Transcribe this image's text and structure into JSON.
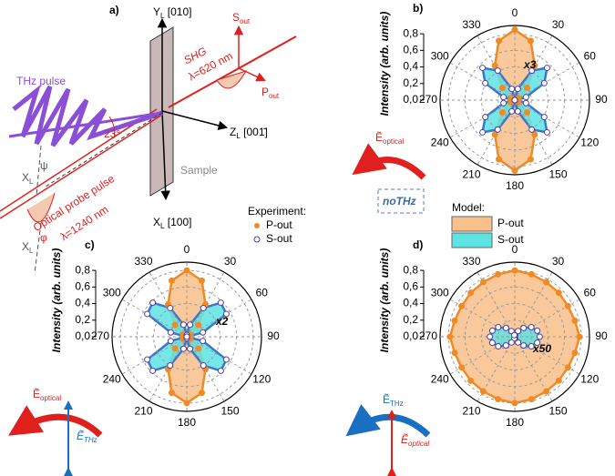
{
  "panel_a": {
    "label": "a)",
    "y_axis": {
      "main": "Y",
      "sub": "L",
      "suffix": " [010]"
    },
    "s_out": {
      "main": "S",
      "sub": "out"
    },
    "shg": "SHG",
    "shg_wavelength": "λ=620 nm",
    "p_out": {
      "main": "P",
      "sub": "out"
    },
    "thz": "THz pulse",
    "angle": "23°",
    "z_axis": {
      "main": "Z",
      "sub": "L",
      "suffix": " [001̄]"
    },
    "psi": "ψ",
    "x_psi": {
      "main": "X",
      "sub": "L"
    },
    "probe": "Optical probe pulse",
    "probe_wavelength": "λ=1240 nm",
    "sample": "Sample",
    "x_axis": {
      "main": "X",
      "sub": "L",
      "suffix": " [100]"
    },
    "phi": "φ",
    "x_phi": {
      "main": "X",
      "sub": "L"
    }
  },
  "legend": {
    "experiment_title": "Experiment:",
    "experiment": [
      "P-out",
      "S-out"
    ],
    "model_title": "Model:"
  },
  "insets": {
    "b": {
      "field": {
        "main": "Ẽ",
        "sub": "optical"
      },
      "label": "noTHz"
    },
    "c": {
      "field": {
        "main": "Ẽ",
        "sub": "optical"
      },
      "thz": {
        "main": "Ẽ",
        "sub": "THz"
      }
    },
    "d": {
      "thz": {
        "main": "Ẽ",
        "sub": "THz"
      },
      "field": {
        "main": "Ẽ",
        "sub": "optical"
      }
    }
  },
  "chart_data": [
    {
      "type": "polar",
      "label": "b)",
      "annotation": "x3",
      "ylabel": "Intensity (arb. units)",
      "rlim": [
        0,
        0.9
      ],
      "rticks": [
        {
          "value": 0,
          "label": "0,0"
        },
        {
          "value": 0.2,
          "label": "0,2"
        },
        {
          "value": 0.4,
          "label": "0,4"
        },
        {
          "value": 0.6,
          "label": "0,6"
        },
        {
          "value": 0.8,
          "label": "0,8"
        }
      ],
      "aticks": [
        0,
        30,
        60,
        90,
        120,
        150,
        180,
        210,
        240,
        270,
        300,
        330
      ],
      "theta": [
        0,
        15,
        30,
        45,
        60,
        75,
        90,
        105,
        120,
        135,
        150,
        165,
        180,
        195,
        210,
        225,
        240,
        255,
        270,
        285,
        300,
        315,
        330,
        345
      ],
      "series": [
        {
          "name": "P-out",
          "color": "#f08a24",
          "values": [
            0.85,
            0.74,
            0.48,
            0.21,
            0.05,
            0,
            0,
            0,
            0.05,
            0.21,
            0.48,
            0.74,
            0.85,
            0.74,
            0.48,
            0.21,
            0.05,
            0,
            0,
            0,
            0.05,
            0.21,
            0.48,
            0.74
          ]
        },
        {
          "name": "S-out",
          "color": "#3a78d0",
          "values": [
            0,
            0.14,
            0.41,
            0.55,
            0.41,
            0.14,
            0,
            0.14,
            0.41,
            0.55,
            0.41,
            0.14,
            0,
            0.14,
            0.41,
            0.55,
            0.41,
            0.14,
            0,
            0.14,
            0.41,
            0.55,
            0.41,
            0.14
          ]
        }
      ]
    },
    {
      "type": "polar",
      "label": "c)",
      "annotation": "x2",
      "ylabel": "Intensity (arb. units)",
      "rlim": [
        0,
        0.9
      ],
      "rticks": [
        {
          "value": 0,
          "label": "0,0"
        },
        {
          "value": 0.2,
          "label": "0,2"
        },
        {
          "value": 0.4,
          "label": "0,4"
        },
        {
          "value": 0.6,
          "label": "0,6"
        },
        {
          "value": 0.8,
          "label": "0,8"
        }
      ],
      "aticks": [
        0,
        30,
        60,
        90,
        120,
        150,
        180,
        210,
        240,
        270,
        300,
        330
      ],
      "theta": [
        0,
        15,
        30,
        45,
        60,
        75,
        90,
        105,
        120,
        135,
        150,
        165,
        180,
        195,
        210,
        225,
        240,
        255,
        270,
        285,
        300,
        315,
        330,
        345
      ],
      "series": [
        {
          "name": "P-out",
          "color": "#f08a24",
          "values": [
            0.8,
            0.7,
            0.45,
            0.2,
            0.05,
            0,
            0,
            0,
            0.05,
            0.2,
            0.45,
            0.7,
            0.8,
            0.7,
            0.45,
            0.2,
            0.05,
            0,
            0,
            0,
            0.05,
            0.2,
            0.45,
            0.7
          ]
        },
        {
          "name": "S-out",
          "color": "#3a78d0",
          "values": [
            0.02,
            0.15,
            0.4,
            0.58,
            0.55,
            0.2,
            0,
            0.2,
            0.55,
            0.58,
            0.4,
            0.15,
            0.02,
            0.15,
            0.4,
            0.58,
            0.55,
            0.2,
            0,
            0.2,
            0.55,
            0.58,
            0.4,
            0.15
          ]
        }
      ]
    },
    {
      "type": "polar",
      "label": "d)",
      "annotation": "x50",
      "ylabel": "Intensity (arb. units)",
      "rlim": [
        0,
        0.9
      ],
      "rticks": [
        {
          "value": 0,
          "label": "0,0"
        },
        {
          "value": 0.2,
          "label": "0,2"
        },
        {
          "value": 0.4,
          "label": "0,4"
        },
        {
          "value": 0.6,
          "label": "0,6"
        },
        {
          "value": 0.8,
          "label": "0,8"
        }
      ],
      "aticks": [
        0,
        30,
        60,
        90,
        120,
        150,
        180,
        210,
        240,
        270,
        300,
        330
      ],
      "theta": [
        0,
        15,
        30,
        45,
        60,
        75,
        90,
        105,
        120,
        135,
        150,
        165,
        180,
        195,
        210,
        225,
        240,
        255,
        270,
        285,
        300,
        315,
        330,
        345
      ],
      "series": [
        {
          "name": "P-out",
          "color": "#f08a24",
          "values": [
            0.8,
            0.78,
            0.76,
            0.75,
            0.74,
            0.75,
            0.78,
            0.75,
            0.74,
            0.75,
            0.76,
            0.78,
            0.8,
            0.78,
            0.76,
            0.75,
            0.74,
            0.75,
            0.78,
            0.75,
            0.74,
            0.75,
            0.76,
            0.78
          ]
        },
        {
          "name": "S-out",
          "color": "#3a78d0",
          "values": [
            0,
            0.02,
            0.08,
            0.15,
            0.23,
            0.28,
            0.3,
            0.28,
            0.23,
            0.15,
            0.08,
            0.02,
            0,
            0.02,
            0.08,
            0.15,
            0.23,
            0.28,
            0.3,
            0.28,
            0.23,
            0.15,
            0.08,
            0.02
          ]
        }
      ]
    }
  ]
}
